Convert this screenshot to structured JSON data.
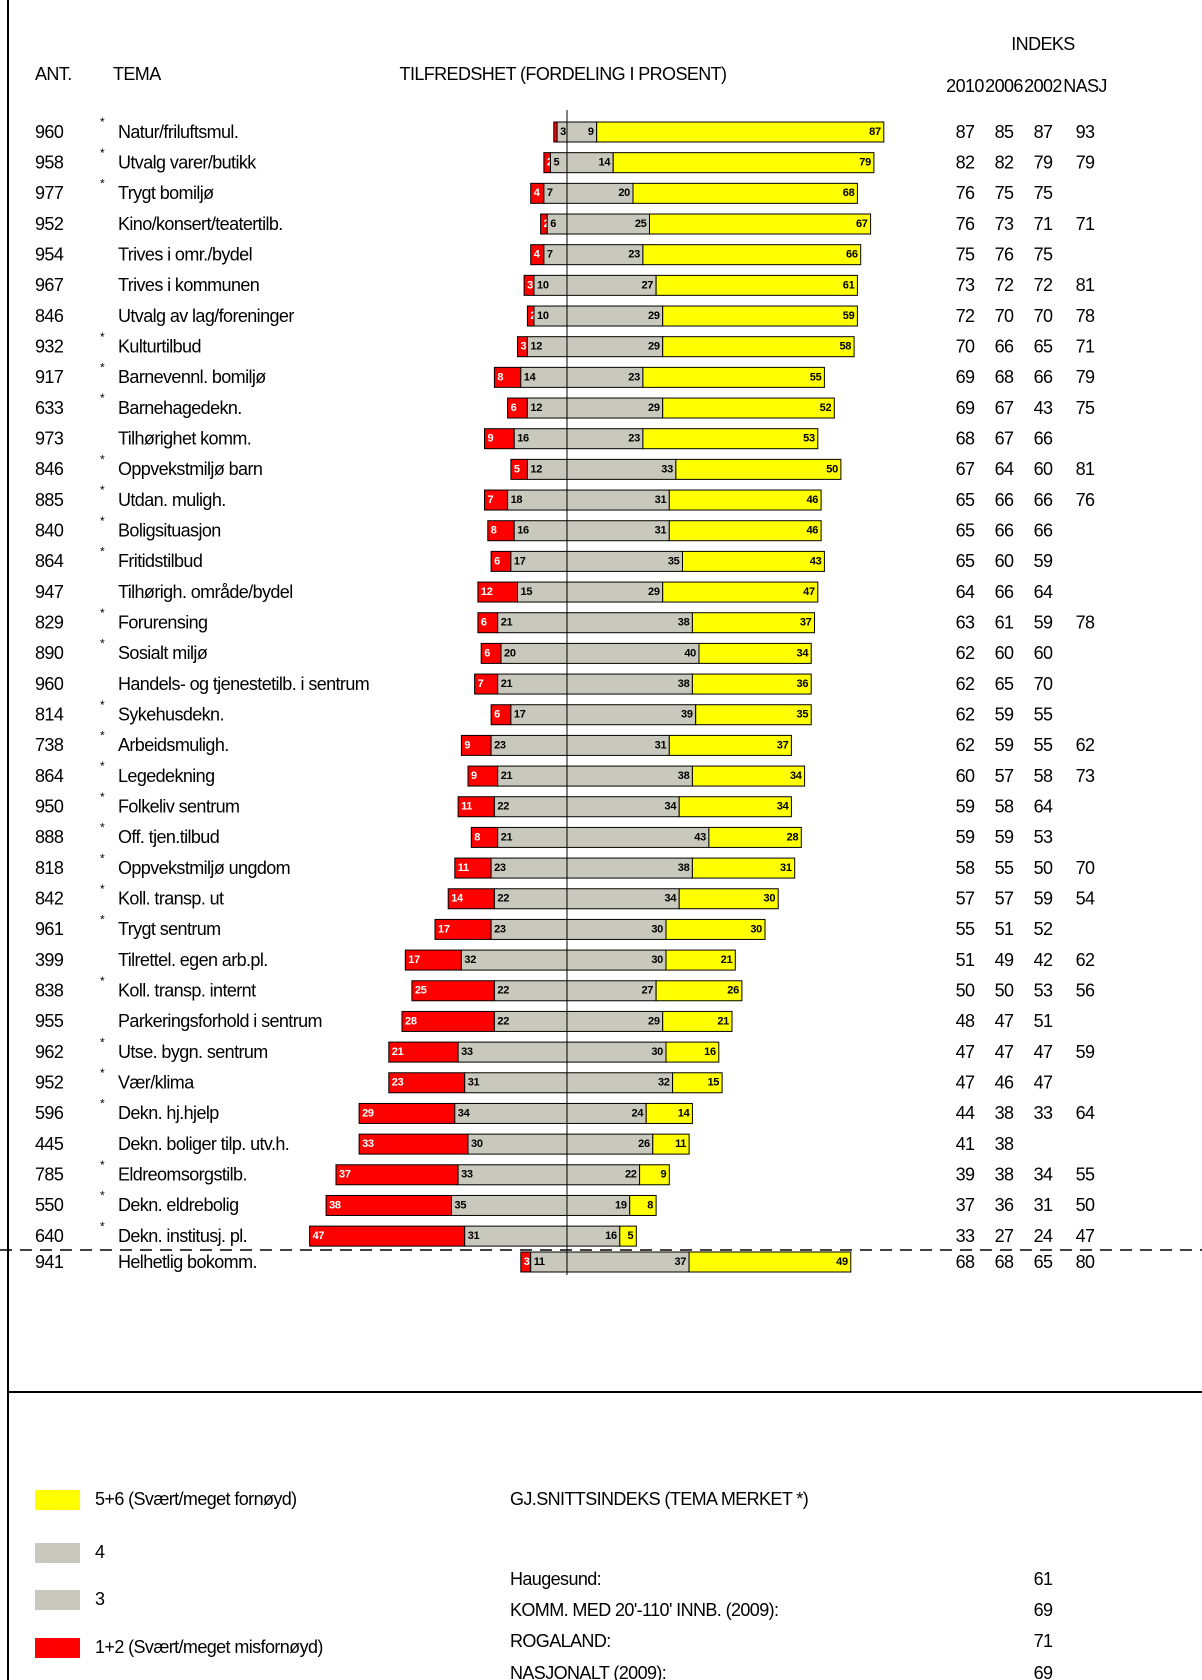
{
  "chart_data": {
    "type": "diverging_bar",
    "title": "TILFREDSHET (FORDELING I PROSENT)",
    "categories": [
      "Natur/friluftsmul.",
      "Utvalg varer/butikk",
      "Trygt bomiljø",
      "Kino/konsert/teatertilb.",
      "Trives i omr./bydel",
      "Trives i kommunen",
      "Utvalg av lag/foreninger",
      "Kulturtilbud",
      "Barnevennl. bomiljø",
      "Barnehagedekn.",
      "Tilhørighet komm.",
      "Oppvekstmiljø barn",
      "Utdan. muligh.",
      "Boligsituasjon",
      "Fritidstilbud",
      "Tilhørigh. område/bydel",
      "Forurensing",
      "Sosialt miljø",
      "Handels- og tjenestetilb. i sentrum",
      "Sykehusdekn.",
      "Arbeidsmuligh.",
      "Legedekning",
      "Folkeliv sentrum",
      "Off. tjen.tilbud",
      "Oppvekstmiljø ungdom",
      "Koll. transp. ut",
      "Trygt sentrum",
      "Tilrettel. egen arb.pl.",
      "Koll. transp. internt",
      "Parkeringsforhold i sentrum",
      "Utse. bygn. sentrum",
      "Vær/klima",
      "Dekn. hj.hjelp",
      "Dekn. boliger tilp. utv.h.",
      "Eldreomsorgstilb.",
      "Dekn. eldrebolig",
      "Dekn. institusj. pl.",
      "Helhetlig bokomm."
    ],
    "series": [
      {
        "name": "1+2 (Svært/meget misfornøyd)",
        "color": "#ff0000",
        "values": [
          1,
          2,
          4,
          2,
          4,
          3,
          2,
          3,
          8,
          6,
          9,
          5,
          7,
          8,
          6,
          12,
          6,
          6,
          7,
          6,
          9,
          9,
          11,
          8,
          11,
          14,
          17,
          17,
          25,
          28,
          21,
          23,
          29,
          33,
          37,
          38,
          47,
          3
        ]
      },
      {
        "name": "3",
        "color": "#c8c8bc",
        "values": [
          3,
          5,
          7,
          6,
          7,
          10,
          10,
          12,
          14,
          12,
          16,
          12,
          18,
          16,
          17,
          15,
          21,
          20,
          21,
          17,
          23,
          21,
          22,
          21,
          23,
          22,
          23,
          32,
          22,
          22,
          33,
          31,
          34,
          30,
          33,
          35,
          31,
          11
        ]
      },
      {
        "name": "4",
        "color": "#c8c8bc",
        "values": [
          9,
          14,
          20,
          25,
          23,
          27,
          29,
          29,
          23,
          29,
          23,
          33,
          31,
          31,
          35,
          29,
          38,
          40,
          38,
          39,
          31,
          38,
          34,
          43,
          38,
          34,
          30,
          30,
          27,
          29,
          30,
          32,
          24,
          26,
          22,
          19,
          16,
          37
        ]
      },
      {
        "name": "5+6 (Svært/meget fornøyd)",
        "color": "#ffff00",
        "values": [
          87,
          79,
          68,
          67,
          66,
          61,
          59,
          58,
          55,
          52,
          53,
          50,
          46,
          46,
          43,
          47,
          37,
          34,
          36,
          35,
          37,
          34,
          34,
          28,
          31,
          30,
          30,
          21,
          26,
          21,
          16,
          15,
          14,
          11,
          9,
          8,
          5,
          49
        ]
      }
    ]
  },
  "table": {
    "headers": {
      "ant": "ANT.",
      "tema": "TEMA",
      "indeks": "INDEKS",
      "years": [
        "2010",
        "2006",
        "2002",
        "NASJ"
      ]
    },
    "ant": [
      960,
      958,
      977,
      952,
      954,
      967,
      846,
      932,
      917,
      633,
      973,
      846,
      885,
      840,
      864,
      947,
      829,
      890,
      960,
      814,
      738,
      864,
      950,
      888,
      818,
      842,
      961,
      399,
      838,
      955,
      962,
      952,
      596,
      445,
      785,
      550,
      640,
      941
    ],
    "stars": [
      "*",
      "*",
      "*",
      null,
      null,
      null,
      null,
      "*",
      "*",
      "*",
      null,
      "*",
      "*",
      "*",
      "*",
      null,
      "*",
      "*",
      null,
      "*",
      "*",
      "*",
      "*",
      "*",
      "*",
      "*",
      "*",
      null,
      "*",
      null,
      "*",
      "*",
      "*",
      null,
      "*",
      "*",
      "*",
      null
    ],
    "indices": [
      [
        87,
        85,
        87,
        93
      ],
      [
        82,
        82,
        79,
        79
      ],
      [
        76,
        75,
        75,
        null
      ],
      [
        76,
        73,
        71,
        71
      ],
      [
        75,
        76,
        75,
        null
      ],
      [
        73,
        72,
        72,
        81
      ],
      [
        72,
        70,
        70,
        78
      ],
      [
        70,
        66,
        65,
        71
      ],
      [
        69,
        68,
        66,
        79
      ],
      [
        69,
        67,
        43,
        75
      ],
      [
        68,
        67,
        66,
        null
      ],
      [
        67,
        64,
        60,
        81
      ],
      [
        65,
        66,
        66,
        76
      ],
      [
        65,
        66,
        66,
        null
      ],
      [
        65,
        60,
        59,
        null
      ],
      [
        64,
        66,
        64,
        null
      ],
      [
        63,
        61,
        59,
        78
      ],
      [
        62,
        60,
        60,
        null
      ],
      [
        62,
        65,
        70,
        null
      ],
      [
        62,
        59,
        55,
        null
      ],
      [
        62,
        59,
        55,
        62
      ],
      [
        60,
        57,
        58,
        73
      ],
      [
        59,
        58,
        64,
        null
      ],
      [
        59,
        59,
        53,
        null
      ],
      [
        58,
        55,
        50,
        70
      ],
      [
        57,
        57,
        59,
        54
      ],
      [
        55,
        51,
        52,
        null
      ],
      [
        51,
        49,
        42,
        62
      ],
      [
        50,
        50,
        53,
        56
      ],
      [
        48,
        47,
        51,
        null
      ],
      [
        47,
        47,
        47,
        59
      ],
      [
        47,
        46,
        47,
        null
      ],
      [
        44,
        38,
        33,
        64
      ],
      [
        41,
        38,
        null,
        null
      ],
      [
        39,
        38,
        34,
        55
      ],
      [
        37,
        36,
        31,
        50
      ],
      [
        33,
        27,
        24,
        47
      ],
      [
        68,
        68,
        65,
        80
      ]
    ]
  },
  "summary": {
    "title": "GJ.SNITTSINDEKS (TEMA MERKET *)",
    "rows": [
      {
        "label": "Haugesund:",
        "value": 61
      },
      {
        "label": "KOMM. MED 20'-110' INNB. (2009):",
        "value": 69
      },
      {
        "label": "ROGALAND:",
        "value": 71
      },
      {
        "label": "NASJONALT (2009):",
        "value": 69
      }
    ]
  }
}
